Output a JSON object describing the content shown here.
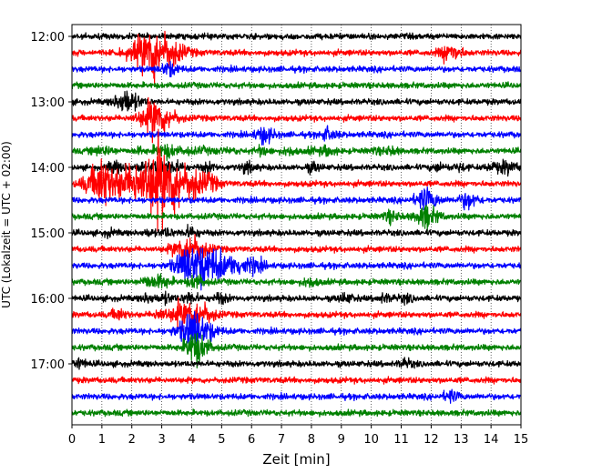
{
  "chart_data": {
    "type": "line",
    "xlabel": "Zeit  [min]",
    "ylabel": "UTC (Lokalzeit = UTC + 02:00)",
    "xlim": [
      0,
      15
    ],
    "x_ticks": [
      "0",
      "1",
      "2",
      "3",
      "4",
      "5",
      "6",
      "7",
      "8",
      "9",
      "10",
      "11",
      "12",
      "13",
      "14",
      "15"
    ],
    "y_ticks": [
      {
        "time": "12:00",
        "minutes": 0
      },
      {
        "time": "13:00",
        "minutes": 60
      },
      {
        "time": "14:00",
        "minutes": 120
      },
      {
        "time": "15:00",
        "minutes": 180
      },
      {
        "time": "16:00",
        "minutes": 240
      },
      {
        "time": "17:00",
        "minutes": 300
      }
    ],
    "start_time": "12:00",
    "trace_interval_min": 15,
    "trace_count": 24,
    "trace_colors": [
      "#000000",
      "#ff0000",
      "#0000ff",
      "#008000"
    ],
    "grid": "vertical dotted",
    "events": [
      {
        "trace": 7,
        "x": [
          0.9,
          1.3,
          2.3,
          2.9,
          3.3,
          3.9,
          4.4,
          4.9,
          5.4,
          6.4,
          7.3,
          8.1,
          8.6,
          10.2,
          10.7
        ],
        "amp": [
          0.8,
          0.6,
          0.5,
          0.8,
          1.4,
          0.6,
          0.5,
          0.4,
          0.4,
          0.9,
          0.8,
          0.5,
          1.0,
          0.5,
          0.8
        ]
      },
      {
        "trace": 8,
        "x": [
          1.5,
          2.4,
          3.0,
          3.5,
          4.6,
          5.9,
          8.1,
          12.3,
          13.0,
          14.1,
          14.6
        ],
        "amp": [
          1.3,
          1.0,
          1.6,
          1.2,
          0.9,
          1.0,
          0.9,
          0.8,
          0.7,
          0.8,
          1.4
        ]
      },
      {
        "trace": 9,
        "x": [
          1.2,
          2.2,
          2.9,
          3.1,
          3.6,
          4.2,
          4.7
        ],
        "amp": [
          5.5,
          3.5,
          4.0,
          5.0,
          3.5,
          2.5,
          1.5
        ]
      },
      {
        "trace": 1,
        "x": [
          2.9
        ],
        "amp": [
          6.5
        ]
      },
      {
        "trace": 5,
        "x": [
          2.9
        ],
        "amp": [
          4.5
        ]
      },
      {
        "trace": 13,
        "x": [
          4.0
        ],
        "amp": [
          4.0
        ]
      },
      {
        "trace": 14,
        "x": [
          4.0,
          4.5,
          5.0,
          5.6,
          6.2
        ],
        "amp": [
          4.0,
          3.0,
          2.5,
          2.0,
          1.5
        ]
      },
      {
        "trace": 15,
        "x": [
          2.6,
          3.1,
          4.2,
          8.0
        ],
        "amp": [
          1.2,
          1.4,
          1.5,
          1.0
        ]
      },
      {
        "trace": 12,
        "x": [
          1.3,
          2.6,
          3.2,
          4.0
        ],
        "amp": [
          0.6,
          0.6,
          0.8,
          1.2
        ]
      },
      {
        "trace": 10,
        "x": [
          11.9,
          13.3
        ],
        "amp": [
          2.5,
          1.8
        ]
      },
      {
        "trace": 11,
        "x": [
          10.7,
          11.9
        ],
        "amp": [
          1.2,
          2.5
        ]
      },
      {
        "trace": 17,
        "x": [
          1.6,
          3.0,
          3.6,
          4.2
        ],
        "amp": [
          1.2,
          1.2,
          1.6,
          4.0
        ]
      },
      {
        "trace": 18,
        "x": [
          4.2
        ],
        "amp": [
          4.5
        ]
      },
      {
        "trace": 19,
        "x": [
          4.1,
          4.3
        ],
        "amp": [
          2.0,
          2.5
        ]
      },
      {
        "trace": 16,
        "x": [
          2.6,
          3.2,
          4.0,
          5.0,
          9.2,
          10.5,
          11.2
        ],
        "amp": [
          0.9,
          1.0,
          1.2,
          1.0,
          1.0,
          0.9,
          0.8
        ]
      },
      {
        "trace": 4,
        "x": [
          1.9
        ],
        "amp": [
          2.8
        ]
      },
      {
        "trace": 2,
        "x": [
          3.3
        ],
        "amp": [
          1.5
        ]
      },
      {
        "trace": 6,
        "x": [
          6.5,
          8.6
        ],
        "amp": [
          1.8,
          1.3
        ]
      },
      {
        "trace": 20,
        "x": [
          0.3,
          11.2
        ],
        "amp": [
          1.0,
          0.9
        ]
      },
      {
        "trace": 22,
        "x": [
          12.7
        ],
        "amp": [
          1.2
        ]
      },
      {
        "trace": 1,
        "x": [
          12.7
        ],
        "amp": [
          2.2
        ]
      }
    ]
  }
}
